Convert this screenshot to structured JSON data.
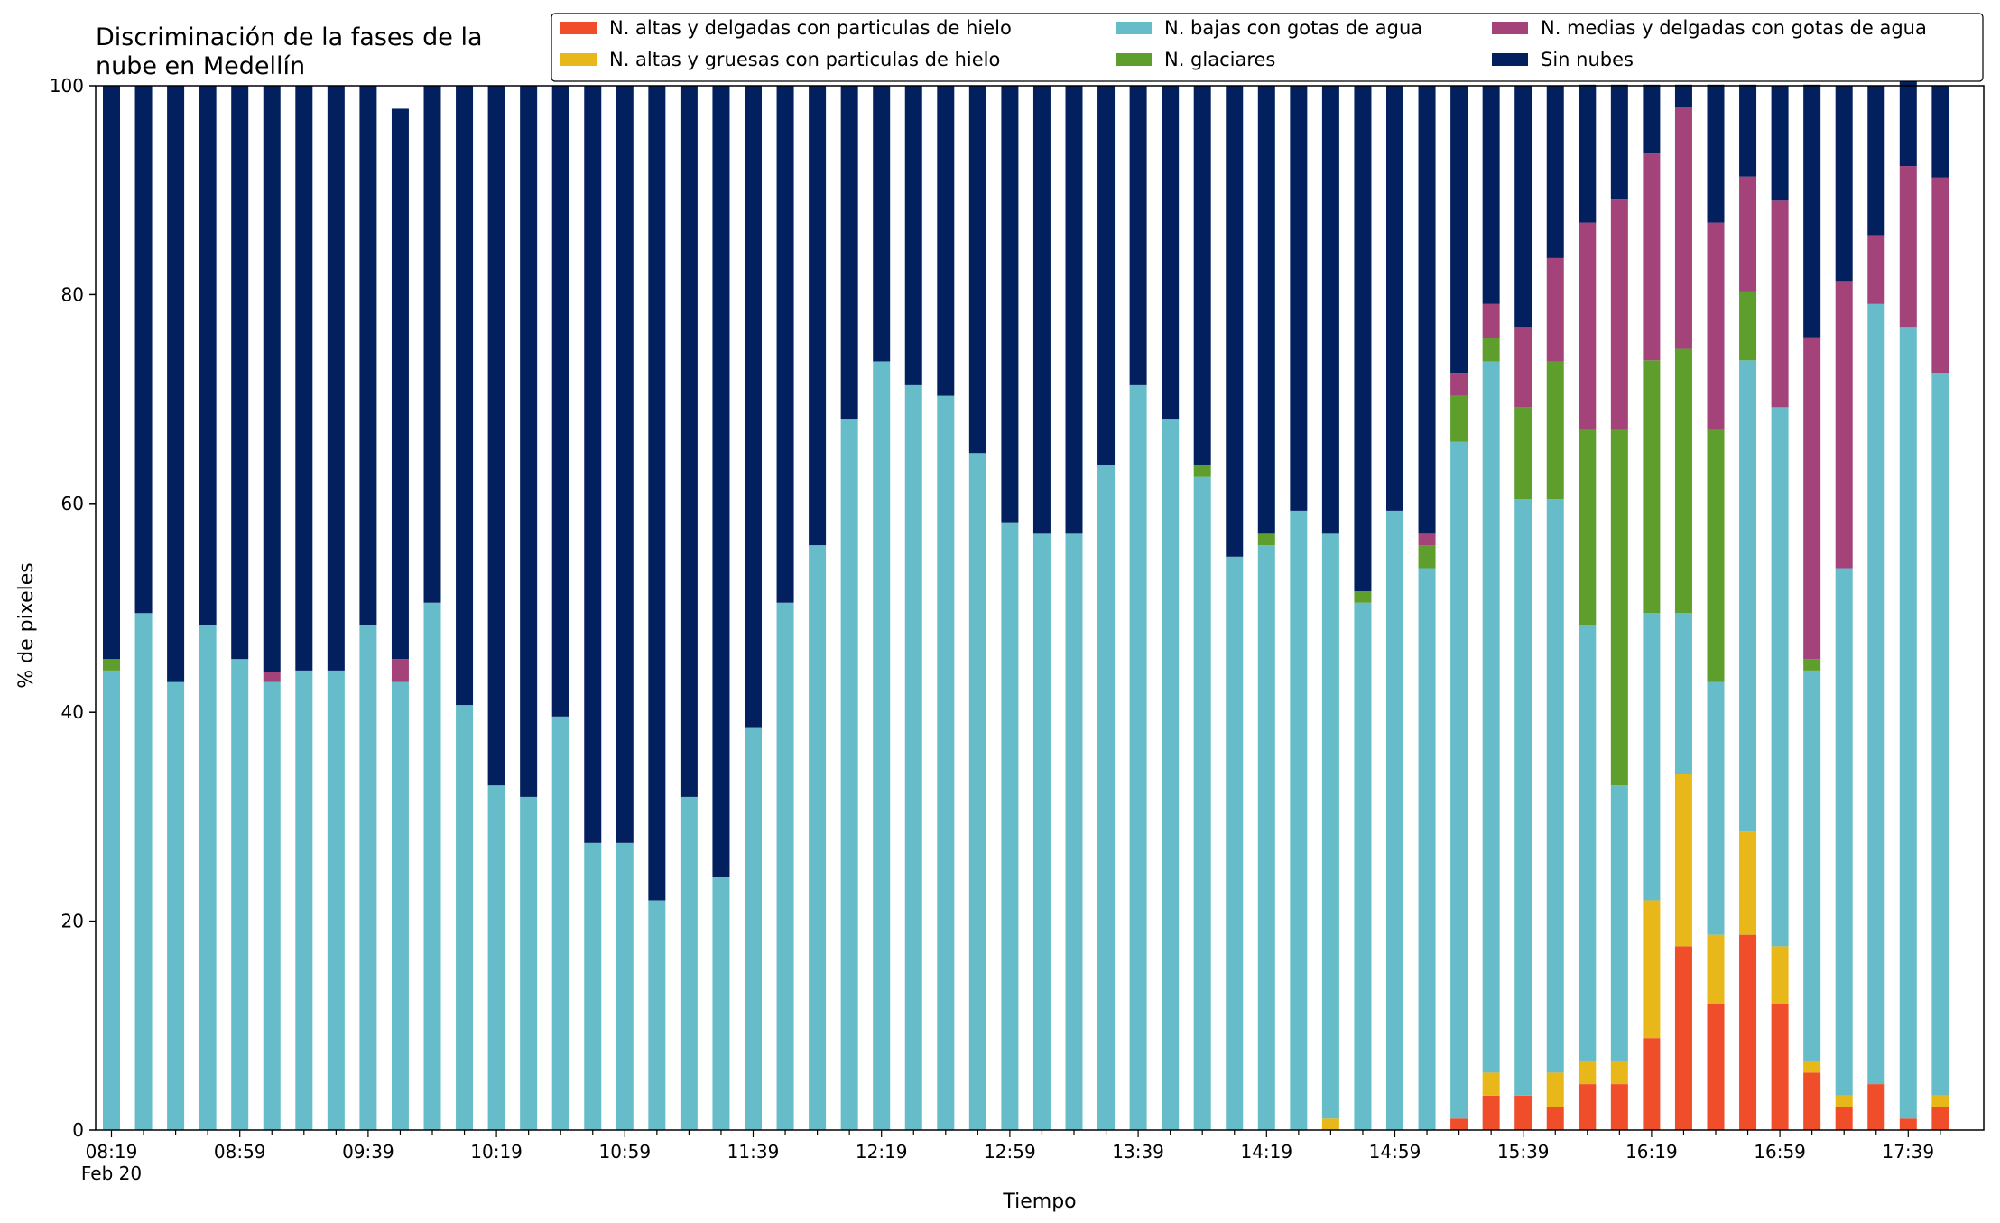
{
  "chart_data": {
    "type": "bar",
    "stacked": true,
    "title": "Discriminación de la fases de la\nnube en Medellín",
    "xlabel": "Tiempo",
    "ylabel": "% de pixeles",
    "ylim": [
      0,
      100
    ],
    "yticks": [
      0,
      20,
      40,
      60,
      80,
      100
    ],
    "grid": false,
    "legend_position": "top-right",
    "x_tick_labels": [
      "08:19",
      "08:59",
      "09:39",
      "10:19",
      "10:59",
      "11:39",
      "12:19",
      "12:59",
      "13:39",
      "14:19",
      "14:59",
      "15:39",
      "16:19",
      "16:59",
      "17:39"
    ],
    "x_tick_label_index_step": 4,
    "x_date_label": "Feb 20",
    "series": [
      {
        "name": "N. altas y delgadas con particulas de hielo",
        "color": "#f04e2a",
        "values": [
          0,
          0,
          0,
          0,
          0,
          0,
          0,
          0,
          0,
          0,
          0,
          0,
          0,
          0,
          0,
          0,
          0,
          0,
          0,
          0,
          0,
          0,
          0,
          0,
          0,
          0,
          0,
          0,
          0,
          0,
          0,
          0,
          0,
          0,
          0,
          0,
          0,
          0,
          0,
          0,
          0,
          0,
          1.1,
          3.3,
          3.3,
          2.2,
          4.4,
          4.4,
          8.8,
          17.6,
          12.1,
          18.7,
          12.1,
          5.5,
          2.2,
          4.4,
          1.1,
          2.2
        ]
      },
      {
        "name": "N. altas y gruesas con particulas de hielo",
        "color": "#e8b81a",
        "values": [
          0,
          0,
          0,
          0,
          0,
          0,
          0,
          0,
          0,
          0,
          0,
          0,
          0,
          0,
          0,
          0,
          0,
          0,
          0,
          0,
          0,
          0,
          0,
          0,
          0,
          0,
          0,
          0,
          0,
          0,
          0,
          0,
          0,
          0,
          0,
          0,
          0,
          0,
          1.1,
          0,
          0,
          0,
          0,
          2.2,
          0,
          3.3,
          2.2,
          2.2,
          13.2,
          16.5,
          6.6,
          9.9,
          5.5,
          1.1,
          1.1,
          0,
          0,
          1.1
        ]
      },
      {
        "name": "N. bajas con gotas de agua",
        "color": "#66bdc9",
        "values": [
          44,
          49.5,
          42.9,
          48.4,
          45.1,
          42.9,
          44,
          44,
          48.4,
          42.9,
          50.5,
          40.7,
          33,
          31.9,
          39.6,
          27.5,
          27.5,
          22,
          31.9,
          24.2,
          38.5,
          50.5,
          56,
          68.1,
          73.6,
          71.4,
          70.3,
          64.8,
          58.2,
          57.1,
          57.1,
          63.7,
          71.4,
          68.1,
          62.6,
          54.9,
          56,
          59.3,
          56,
          50.5,
          59.3,
          53.8,
          64.8,
          68.1,
          57.1,
          54.9,
          41.8,
          26.4,
          27.5,
          15.4,
          24.2,
          45.1,
          51.6,
          37.4,
          50.5,
          74.7,
          75.8,
          69.2
        ]
      },
      {
        "name": "N. glaciares",
        "color": "#5d9e2d",
        "values": [
          1.1,
          0,
          0,
          0,
          0,
          0,
          0,
          0,
          0,
          0,
          0,
          0,
          0,
          0,
          0,
          0,
          0,
          0,
          0,
          0,
          0,
          0,
          0,
          0,
          0,
          0,
          0,
          0,
          0,
          0,
          0,
          0,
          0,
          0,
          1.1,
          0,
          1.1,
          0,
          0,
          1.1,
          0,
          2.2,
          4.4,
          2.2,
          8.8,
          13.2,
          18.7,
          34.1,
          24.2,
          25.3,
          24.2,
          6.6,
          0,
          1.1,
          0,
          0,
          0,
          0
        ]
      },
      {
        "name": "N. medias y delgadas con gotas de agua",
        "color": "#a3437a",
        "values": [
          0,
          0,
          0,
          0,
          0,
          1,
          0,
          0,
          0,
          2.2,
          0,
          0,
          0,
          0,
          0,
          0,
          0,
          0,
          0,
          0,
          0,
          0,
          0,
          0,
          0,
          0,
          0,
          0,
          0,
          0,
          0,
          0,
          0,
          0,
          0,
          0,
          0,
          0,
          0,
          0,
          0,
          1.1,
          2.2,
          3.3,
          7.7,
          9.9,
          19.8,
          22,
          19.8,
          23.1,
          19.8,
          11,
          19.8,
          30.8,
          27.5,
          6.6,
          15.4,
          18.7
        ]
      },
      {
        "name": "Sin nubes",
        "color": "#03205e",
        "values": [
          54.9,
          50.5,
          57.1,
          51.6,
          54.9,
          56.1,
          56,
          56,
          51.6,
          52.7,
          49.5,
          59.3,
          67,
          68.1,
          60.4,
          72.5,
          72.5,
          78,
          68.1,
          75.8,
          61.5,
          49.5,
          44,
          31.9,
          26.4,
          28.6,
          29.7,
          35.2,
          41.8,
          42.9,
          42.9,
          36.3,
          28.6,
          31.9,
          36.3,
          45.1,
          42.9,
          40.7,
          42.9,
          48.4,
          40.7,
          42.9,
          27.5,
          20.9,
          23.1,
          16.5,
          13.2,
          11,
          6.6,
          2.2,
          13.2,
          8.8,
          11,
          24.2,
          18.7,
          14.3,
          8.8,
          8.8
        ]
      }
    ]
  }
}
